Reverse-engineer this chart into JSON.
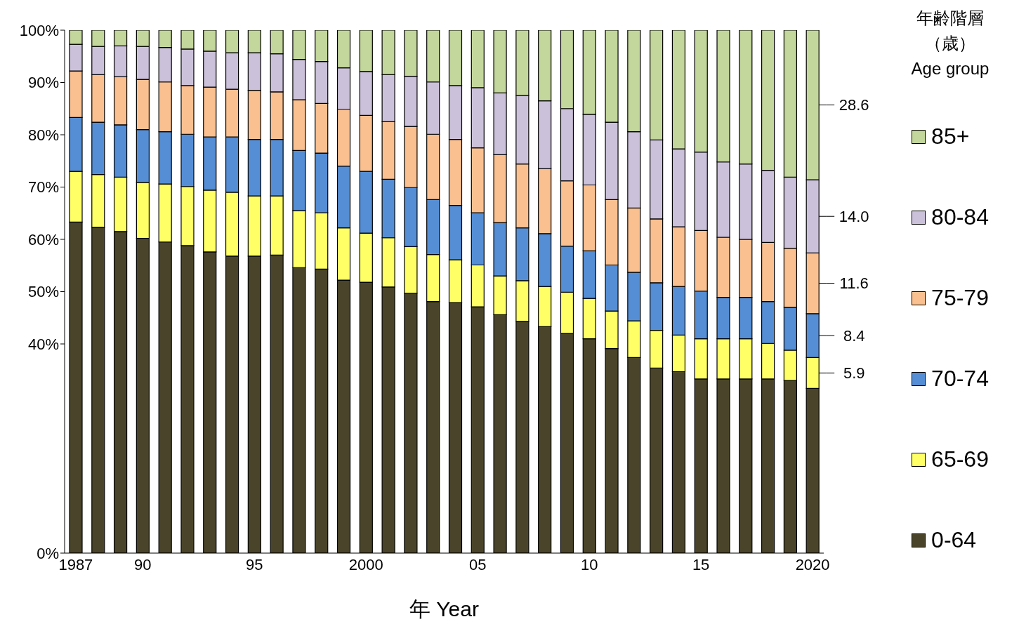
{
  "chart_data": {
    "type": "bar",
    "stacked": true,
    "xlabel": "年 Year",
    "legend_title": "年齢階層（歳）\nAge group",
    "legend": "right",
    "categories": [
      "1987",
      null,
      null,
      "90",
      null,
      null,
      null,
      null,
      "95",
      null,
      null,
      null,
      null,
      "2000",
      null,
      null,
      null,
      null,
      "05",
      null,
      null,
      null,
      null,
      "10",
      null,
      null,
      null,
      null,
      "15",
      null,
      null,
      null,
      null,
      "2020"
    ],
    "ylim": [
      0,
      100
    ],
    "yticks": [
      {
        "value": 0,
        "label": "0%"
      },
      {
        "value": 40,
        "label": "40%"
      },
      {
        "value": 50,
        "label": "50%"
      },
      {
        "value": 60,
        "label": "60%"
      },
      {
        "value": 70,
        "label": "70%"
      },
      {
        "value": 80,
        "label": "80%"
      },
      {
        "value": 90,
        "label": "90%"
      },
      {
        "value": 100,
        "label": "100%"
      }
    ],
    "series": [
      {
        "name": "0-64",
        "color": "#4a452a",
        "values": [
          63.3,
          62.3,
          61.5,
          60.2,
          59.5,
          58.8,
          57.6,
          56.8,
          56.8,
          57.0,
          54.6,
          54.3,
          52.2,
          51.8,
          50.9,
          49.7,
          48.1,
          47.9,
          47.1,
          45.6,
          44.3,
          43.3,
          42.0,
          41.0,
          39.1,
          37.4,
          35.4,
          34.7,
          33.3,
          33.3,
          33.3,
          33.3,
          33.0,
          31.5
        ]
      },
      {
        "name": "65-69",
        "color": "#ffff66",
        "values": [
          9.7,
          10.1,
          10.4,
          10.7,
          11.1,
          11.3,
          11.8,
          12.2,
          11.5,
          11.3,
          10.9,
          10.8,
          10.0,
          9.4,
          9.4,
          8.9,
          9.0,
          8.2,
          8.0,
          7.4,
          7.8,
          7.7,
          7.9,
          7.7,
          7.2,
          7.0,
          7.2,
          7.0,
          7.7,
          7.7,
          7.7,
          6.8,
          5.8,
          5.9
        ],
        "value_labels": [
          null,
          null,
          null,
          null,
          null,
          null,
          null,
          null,
          null,
          null,
          null,
          null,
          null,
          null,
          null,
          null,
          null,
          null,
          null,
          null,
          null,
          null,
          null,
          null,
          null,
          null,
          null,
          null,
          null,
          null,
          null,
          null,
          null,
          "5.9"
        ]
      },
      {
        "name": "70-74",
        "color": "#558ed5",
        "values": [
          10.3,
          10.0,
          10.0,
          10.1,
          10.0,
          10.0,
          10.2,
          10.6,
          10.8,
          10.8,
          11.5,
          11.4,
          11.8,
          11.8,
          11.2,
          11.3,
          10.5,
          10.4,
          10.0,
          10.2,
          10.1,
          10.1,
          8.8,
          9.1,
          8.8,
          9.3,
          9.1,
          9.3,
          9.1,
          7.9,
          7.9,
          8.0,
          8.2,
          8.4
        ],
        "value_labels": [
          null,
          null,
          null,
          null,
          null,
          null,
          null,
          null,
          null,
          null,
          null,
          null,
          null,
          null,
          null,
          null,
          null,
          null,
          null,
          null,
          null,
          null,
          null,
          null,
          null,
          null,
          null,
          null,
          null,
          null,
          null,
          null,
          null,
          "8.4"
        ]
      },
      {
        "name": "75-79",
        "color": "#fac090",
        "values": [
          8.9,
          9.1,
          9.2,
          9.6,
          9.5,
          9.3,
          9.5,
          9.1,
          9.4,
          9.1,
          9.7,
          9.5,
          10.9,
          10.7,
          11.0,
          11.7,
          12.5,
          12.6,
          12.4,
          13.0,
          12.2,
          12.4,
          12.5,
          12.6,
          12.5,
          12.3,
          12.2,
          11.4,
          11.6,
          11.5,
          11.1,
          11.3,
          11.3,
          11.6
        ],
        "value_labels": [
          null,
          null,
          null,
          null,
          null,
          null,
          null,
          null,
          null,
          null,
          null,
          null,
          null,
          null,
          null,
          null,
          null,
          null,
          null,
          null,
          null,
          null,
          null,
          null,
          null,
          null,
          null,
          null,
          null,
          null,
          null,
          null,
          null,
          "11.6"
        ]
      },
      {
        "name": "80-84",
        "color": "#ccc1da",
        "values": [
          5.1,
          5.4,
          5.9,
          6.3,
          6.6,
          7.0,
          6.9,
          7.0,
          7.2,
          7.3,
          7.7,
          8.0,
          7.9,
          8.4,
          9.0,
          9.6,
          10.0,
          10.3,
          11.5,
          11.8,
          13.1,
          13.0,
          13.8,
          13.5,
          14.8,
          14.6,
          15.1,
          14.9,
          15.0,
          14.4,
          14.4,
          13.8,
          13.6,
          14.0
        ],
        "value_labels": [
          null,
          null,
          null,
          null,
          null,
          null,
          null,
          null,
          null,
          null,
          null,
          null,
          null,
          null,
          null,
          null,
          null,
          null,
          null,
          null,
          null,
          null,
          null,
          null,
          null,
          null,
          null,
          null,
          null,
          null,
          null,
          null,
          null,
          "14.0"
        ]
      },
      {
        "name": "85+",
        "color": "#c3d69b",
        "values": [
          2.7,
          3.1,
          3.0,
          3.1,
          3.3,
          3.6,
          4.0,
          4.3,
          4.3,
          4.5,
          5.6,
          6.0,
          7.2,
          7.9,
          8.5,
          8.8,
          9.9,
          10.6,
          11.0,
          12.0,
          12.5,
          13.5,
          15.0,
          16.1,
          17.6,
          19.4,
          21.0,
          22.7,
          23.3,
          25.2,
          25.6,
          26.8,
          28.1,
          28.6
        ],
        "value_labels": [
          null,
          null,
          null,
          null,
          null,
          null,
          null,
          null,
          null,
          null,
          null,
          null,
          null,
          null,
          null,
          null,
          null,
          null,
          null,
          null,
          null,
          null,
          null,
          null,
          null,
          null,
          null,
          null,
          null,
          null,
          null,
          null,
          null,
          "28.6"
        ]
      }
    ]
  }
}
